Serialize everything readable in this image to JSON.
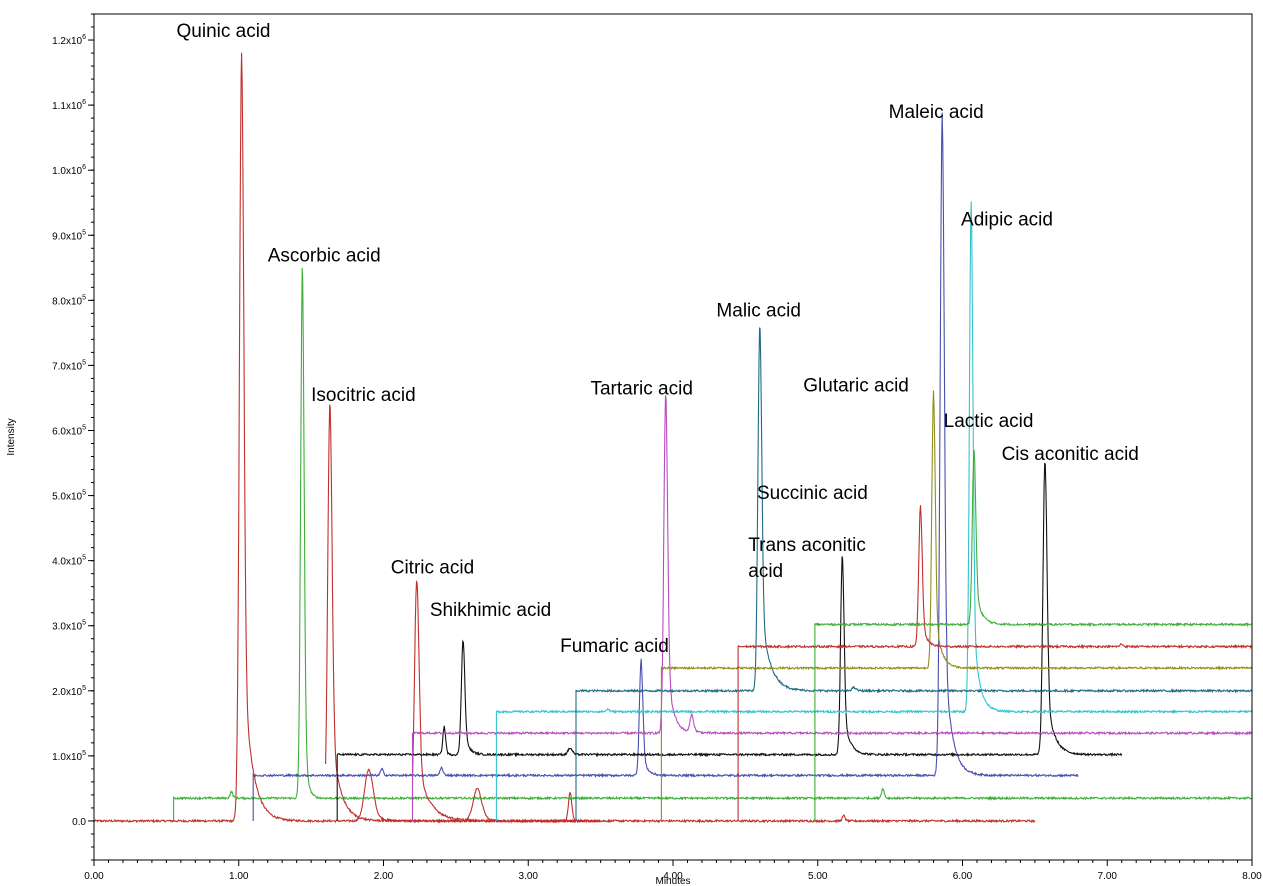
{
  "chart_data": {
    "type": "line",
    "title": "",
    "xlabel": "Minutes",
    "ylabel": "Intensity",
    "xlim": [
      0,
      8
    ],
    "ylim": [
      -60000,
      1240000
    ],
    "x_ticks": [
      {
        "value": 0,
        "label": "0.00"
      },
      {
        "value": 1,
        "label": "1.00"
      },
      {
        "value": 2,
        "label": "2.00"
      },
      {
        "value": 3,
        "label": "3.00"
      },
      {
        "value": 4,
        "label": "4.00"
      },
      {
        "value": 5,
        "label": "5.00"
      },
      {
        "value": 6,
        "label": "6.00"
      },
      {
        "value": 7,
        "label": "7.00"
      },
      {
        "value": 8,
        "label": "8.00"
      }
    ],
    "y_ticks": [
      {
        "value": 0,
        "mant": "0.0",
        "exp": ""
      },
      {
        "value": 100000,
        "mant": "1.0x10",
        "exp": "5"
      },
      {
        "value": 200000,
        "mant": "2.0x10",
        "exp": "5"
      },
      {
        "value": 300000,
        "mant": "3.0x10",
        "exp": "5"
      },
      {
        "value": 400000,
        "mant": "4.0x10",
        "exp": "5"
      },
      {
        "value": 500000,
        "mant": "5.0x10",
        "exp": "5"
      },
      {
        "value": 600000,
        "mant": "6.0x10",
        "exp": "5"
      },
      {
        "value": 700000,
        "mant": "7.0x10",
        "exp": "5"
      },
      {
        "value": 800000,
        "mant": "8.0x10",
        "exp": "5"
      },
      {
        "value": 900000,
        "mant": "9.0x10",
        "exp": "5"
      },
      {
        "value": 1000000,
        "mant": "1.0x10",
        "exp": "6"
      },
      {
        "value": 1100000,
        "mant": "1.1x10",
        "exp": "6"
      },
      {
        "value": 1200000,
        "mant": "1.2x10",
        "exp": "6"
      }
    ],
    "grid": false,
    "legend": "none",
    "traces": [
      {
        "color": "#c0302c",
        "baseline": 0,
        "x_start": 0,
        "x_end": 6.5,
        "peaks": [
          {
            "x": 1.02,
            "y": 1180000,
            "w": 0.015,
            "tail": 0.06
          },
          {
            "x": 1.9,
            "y": 80000,
            "w": 0.03,
            "tail": 0.05
          },
          {
            "x": 2.65,
            "y": 50000,
            "w": 0.03,
            "tail": 0.04
          },
          {
            "x": 3.29,
            "y": 45000,
            "w": 0.012,
            "tail": 0.01
          },
          {
            "x": 5.18,
            "y": 8000,
            "w": 0.01,
            "tail": 0.01
          }
        ]
      },
      {
        "color": "#3fae3a",
        "baseline": 35000,
        "x_start": 0.55,
        "x_end": 8,
        "peaks": [
          {
            "x": 0.95,
            "y": 45000,
            "w": 0.01,
            "tail": 0.01
          },
          {
            "x": 1.44,
            "y": 860000,
            "w": 0.012,
            "tail": 0.02
          },
          {
            "x": 5.45,
            "y": 50000,
            "w": 0.01,
            "tail": 0.01
          }
        ]
      },
      {
        "color": "#c0302c",
        "baseline": 0,
        "x_start": 1.6,
        "x_end": 3.5,
        "peaks": [
          {
            "x": 1.63,
            "y": 645000,
            "w": 0.015,
            "tail": 0.06
          }
        ]
      },
      {
        "color": "#c0302c",
        "baseline": 0,
        "x_start": 2.2,
        "x_end": 3.5,
        "peaks": [
          {
            "x": 2.23,
            "y": 370000,
            "w": 0.016,
            "tail": 0.08
          }
        ]
      },
      {
        "color": "#4a4fae",
        "baseline": 70000,
        "x_start": 1.1,
        "x_end": 6.8,
        "peaks": [
          {
            "x": 1.99,
            "y": 80000,
            "w": 0.01,
            "tail": 0.01
          },
          {
            "x": 2.4,
            "y": 82000,
            "w": 0.01,
            "tail": 0.02
          },
          {
            "x": 3.78,
            "y": 248000,
            "w": 0.012,
            "tail": 0.03
          },
          {
            "x": 5.86,
            "y": 1090000,
            "w": 0.014,
            "tail": 0.05
          }
        ]
      },
      {
        "color": "#111111",
        "baseline": 102000,
        "x_start": 1.68,
        "x_end": 7.1,
        "peaks": [
          {
            "x": 2.42,
            "y": 145000,
            "w": 0.01,
            "tail": 0.01
          },
          {
            "x": 2.55,
            "y": 280000,
            "w": 0.012,
            "tail": 0.03
          },
          {
            "x": 3.29,
            "y": 112000,
            "w": 0.015,
            "tail": 0.02
          },
          {
            "x": 5.17,
            "y": 410000,
            "w": 0.012,
            "tail": 0.04
          },
          {
            "x": 6.57,
            "y": 555000,
            "w": 0.014,
            "tail": 0.05
          }
        ]
      },
      {
        "color": "#b84bc0",
        "baseline": 135000,
        "x_start": 2.2,
        "x_end": 8,
        "peaks": [
          {
            "x": 3.95,
            "y": 660000,
            "w": 0.013,
            "tail": 0.04
          },
          {
            "x": 4.13,
            "y": 162000,
            "w": 0.012,
            "tail": 0.03
          }
        ]
      },
      {
        "color": "#33c3cf",
        "baseline": 168000,
        "x_start": 2.78,
        "x_end": 8,
        "peaks": [
          {
            "x": 3.55,
            "y": 172000,
            "w": 0.01,
            "tail": 0.01
          },
          {
            "x": 6.06,
            "y": 952000,
            "w": 0.012,
            "tail": 0.04
          }
        ]
      },
      {
        "color": "#1f6b85",
        "baseline": 200000,
        "x_start": 3.33,
        "x_end": 8,
        "peaks": [
          {
            "x": 4.6,
            "y": 765000,
            "w": 0.013,
            "tail": 0.06
          },
          {
            "x": 5.25,
            "y": 205000,
            "w": 0.015,
            "tail": 0.02
          }
        ]
      },
      {
        "color": "#8f8f1e",
        "baseline": 235000,
        "x_start": 3.92,
        "x_end": 8,
        "peaks": [
          {
            "x": 5.8,
            "y": 660000,
            "w": 0.012,
            "tail": 0.04
          }
        ]
      },
      {
        "color": "#c0302c",
        "baseline": 268000,
        "x_start": 4.45,
        "x_end": 8,
        "peaks": [
          {
            "x": 5.71,
            "y": 485000,
            "w": 0.012,
            "tail": 0.03
          },
          {
            "x": 7.1,
            "y": 272000,
            "w": 0.01,
            "tail": 0.01
          }
        ]
      },
      {
        "color": "#3fae3a",
        "baseline": 302000,
        "x_start": 4.98,
        "x_end": 8,
        "peaks": [
          {
            "x": 6.08,
            "y": 570000,
            "w": 0.012,
            "tail": 0.04
          }
        ]
      }
    ],
    "annotations": [
      {
        "text": "Quinic acid",
        "x": 0.57,
        "y": 1205000
      },
      {
        "text": "Ascorbic acid",
        "x": 1.2,
        "y": 860000
      },
      {
        "text": "Isocitric acid",
        "x": 1.5,
        "y": 645000
      },
      {
        "text": "Citric acid",
        "x": 2.05,
        "y": 380000
      },
      {
        "text": "Shikhimic acid",
        "x": 2.32,
        "y": 315000
      },
      {
        "text": "Fumaric acid",
        "x": 3.22,
        "y": 260000
      },
      {
        "text": "Tartaric acid",
        "x": 3.43,
        "y": 655000
      },
      {
        "text": "Malic acid",
        "x": 4.3,
        "y": 775000
      },
      {
        "text": "Glutaric acid",
        "x": 4.9,
        "y": 660000
      },
      {
        "text": "Maleic acid",
        "x": 5.49,
        "y": 1080000
      },
      {
        "text": "Adipic acid",
        "x": 5.99,
        "y": 915000
      },
      {
        "text": "Lactic acid",
        "x": 5.87,
        "y": 605000
      },
      {
        "text": "Cis aconitic acid",
        "x": 6.27,
        "y": 555000
      },
      {
        "text": "Succinic acid",
        "x": 4.58,
        "y": 495000
      },
      {
        "text": "Trans aconitic",
        "x": 4.52,
        "y": 415000
      },
      {
        "text": "acid",
        "x": 4.52,
        "y": 375000
      }
    ]
  }
}
